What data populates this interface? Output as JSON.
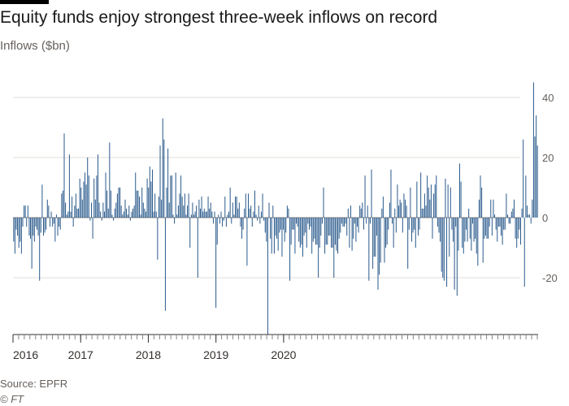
{
  "title": "Equity funds enjoy strongest three-week inflows on record",
  "subtitle": "Inflows ($bn)",
  "source": "Source: EPFR",
  "credit": "© FT",
  "chart_data": {
    "type": "bar",
    "title": "Equity funds enjoy strongest three-week inflows on record",
    "ylabel": "Inflows ($bn)",
    "xlabel": "",
    "ylim": [
      -39,
      47
    ],
    "yticks": [
      40,
      20,
      0,
      -20
    ],
    "x_tick_labels": [
      "2016",
      "2017",
      "2018",
      "2019",
      "2020"
    ],
    "grid": true,
    "bar_color": "#2a5a8c",
    "frequency": "weekly, Jan 2016 - Nov 2020",
    "values": [
      -8,
      -12,
      -4,
      -6,
      -10,
      -8,
      -12,
      -3,
      4,
      4,
      -3,
      4,
      -6,
      -7,
      -17,
      -6,
      -8,
      -3,
      -4,
      -6,
      -21,
      -5,
      11,
      -6,
      -5,
      -4,
      6,
      4,
      -3,
      2,
      -3,
      -2,
      -8,
      1,
      -6,
      -3,
      -4,
      8,
      9,
      28,
      5,
      1,
      2,
      21,
      2,
      7,
      -3,
      4,
      8,
      3,
      3,
      13,
      10,
      6,
      12,
      15,
      11,
      20,
      14,
      -1,
      5,
      -7,
      13,
      6,
      14,
      21,
      5,
      2,
      -1,
      5,
      2,
      15,
      9,
      3,
      25,
      9,
      1,
      -1,
      3,
      5,
      8,
      10,
      10,
      4,
      1,
      2,
      6,
      3,
      1,
      4,
      -1,
      2,
      3,
      4,
      15,
      9,
      9,
      7,
      1,
      10,
      5,
      3,
      2,
      13,
      10,
      17,
      12,
      16,
      2,
      8,
      2,
      -14,
      7,
      24,
      6,
      33,
      26,
      -31,
      10,
      23,
      5,
      14,
      14,
      1,
      -2,
      15,
      1,
      4,
      8,
      14,
      7,
      4,
      8,
      1,
      4,
      8,
      -10,
      1,
      5,
      1,
      2,
      4,
      -20,
      6,
      3,
      7,
      2,
      3,
      2,
      2,
      7,
      3,
      5,
      2,
      -2,
      2,
      -30,
      -9,
      1,
      -2,
      2,
      -3,
      -1,
      7,
      -3,
      1,
      2,
      10,
      -2,
      5,
      1,
      7,
      7,
      3,
      5,
      -3,
      -7,
      -4,
      3,
      8,
      -16,
      8,
      3,
      4,
      -3,
      2,
      9,
      1,
      -1,
      4,
      -2,
      2,
      8,
      -1,
      -5,
      -8,
      -39,
      5,
      -7,
      -12,
      4,
      -12,
      -6,
      -7,
      -11,
      -5,
      -4,
      -13,
      -4,
      -8,
      -5,
      4,
      3,
      -21,
      -9,
      -4,
      -4,
      -12,
      -2,
      -3,
      -8,
      -10,
      -9,
      -13,
      -6,
      -5,
      -10,
      -2,
      -4,
      -3,
      -12,
      -8,
      -7,
      -9,
      -9,
      -20,
      -10,
      -6,
      -2,
      10,
      -12,
      -9,
      -9,
      -6,
      -6,
      -10,
      -10,
      -20,
      -9,
      -11,
      -12,
      -7,
      -5,
      -2,
      -3,
      -3,
      -2,
      -6,
      3,
      -10,
      4,
      -11,
      -7,
      -2,
      -8,
      -3,
      -5,
      4,
      3,
      5,
      -4,
      14,
      -2,
      4,
      -21,
      -2,
      16,
      -17,
      -13,
      -13,
      -6,
      -24,
      -19,
      -15,
      3,
      7,
      -15,
      -10,
      -9,
      -4,
      5,
      16,
      -2,
      -10,
      3,
      -5,
      11,
      4,
      6,
      5,
      -5,
      8,
      6,
      4,
      -17,
      -4,
      10,
      -8,
      -5,
      -4,
      -10,
      12,
      -6,
      -4,
      15,
      3,
      3,
      8,
      4,
      14,
      10,
      6,
      11,
      -7,
      8,
      11,
      14,
      -3,
      -5,
      -8,
      -18,
      -20,
      -21,
      13,
      -23,
      11,
      -13,
      10,
      -4,
      -8,
      -24,
      -3,
      -26,
      -11,
      18,
      12,
      -10,
      -12,
      -8,
      -4,
      -8,
      3,
      -7,
      -11,
      -2,
      -8,
      -7,
      -12,
      -16,
      6,
      14,
      10,
      -15,
      -7,
      -6,
      -7,
      -7,
      -3,
      6,
      -6,
      6,
      1,
      -4,
      -8,
      -3,
      -3,
      -6,
      -9,
      -4,
      -4,
      8,
      1,
      -2,
      -2,
      2,
      3,
      6,
      -7,
      -10,
      -7,
      -4,
      -9,
      3,
      26,
      -23,
      14,
      4,
      1,
      1,
      -2,
      6,
      45,
      27,
      34,
      24
    ]
  }
}
